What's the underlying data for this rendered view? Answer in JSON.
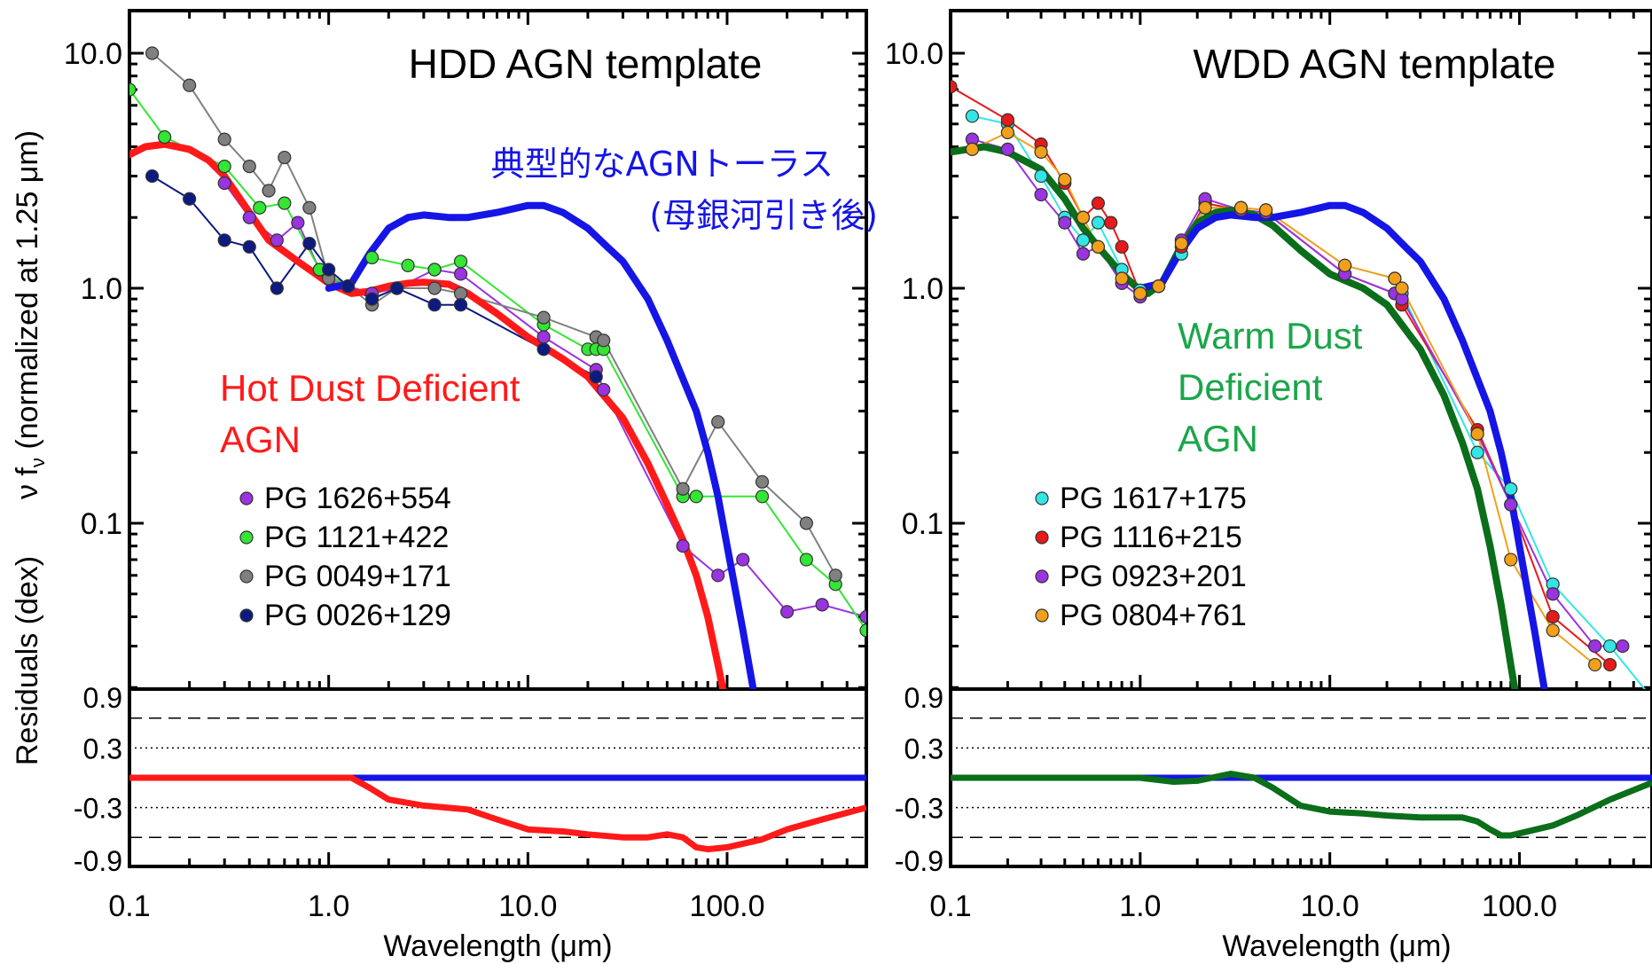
{
  "ylabel_top": "ν f",
  "ylabel_top_sub": "ν",
  "ylabel_top_rest": " (normalized at 1.25 μm)",
  "ylabel_bottom": "Residuals (dex)",
  "xlabel": "Wavelength (μm)",
  "xticks": [
    "0.1",
    "1.0",
    "10.0",
    "100.0"
  ],
  "yticks_top": [
    "10.0",
    "1.0",
    "0.1"
  ],
  "yticks_bottom": [
    "0.9",
    "0.3",
    "-0.3",
    "-0.9"
  ],
  "torus_annotation_line1": "典型的なAGNトーラス",
  "torus_annotation_line2": "(母銀河引き後)",
  "colors": {
    "torus": "#1515e6",
    "hdd": "#ff1a1a",
    "wdd": "#0a6e1a",
    "wdd_text": "#1aa64a",
    "purple": "#9a33e0",
    "green": "#33e633",
    "gray": "#808080",
    "navy": "#0d1a80",
    "cyan": "#33e6e6",
    "red": "#e61a1a",
    "orange": "#f2a01a"
  },
  "chart_data": [
    {
      "type": "line",
      "title": "HDD AGN template",
      "label_lines": [
        "Hot Dust Deficient",
        "AGN"
      ],
      "xlabel": "Wavelength (μm)",
      "ylabel": "ν f_ν (normalized at 1.25 μm)",
      "xscale": "log",
      "yscale": "log",
      "xlim": [
        0.1,
        500
      ],
      "ylim": [
        0.01,
        15
      ],
      "series": [
        {
          "role": "template",
          "color": "#ff1a1a",
          "x": [
            0.1,
            0.12,
            0.15,
            0.2,
            0.25,
            0.3,
            0.4,
            0.5,
            0.7,
            1.0,
            1.3,
            1.6,
            2.0,
            2.5,
            3.0,
            4.0,
            5.0,
            7.0,
            10,
            15,
            20,
            30,
            40,
            50,
            60,
            70,
            80,
            90,
            100
          ],
          "y": [
            3.7,
            4.0,
            4.1,
            3.9,
            3.5,
            3.0,
            2.1,
            1.6,
            1.3,
            1.05,
            0.95,
            0.97,
            1.02,
            1.05,
            1.06,
            1.04,
            0.95,
            0.78,
            0.62,
            0.5,
            0.42,
            0.28,
            0.18,
            0.12,
            0.085,
            0.06,
            0.04,
            0.025,
            0.016
          ]
        },
        {
          "role": "torus",
          "color": "#1515e6",
          "x": [
            1.0,
            1.3,
            1.6,
            2.0,
            2.5,
            3.0,
            4.0,
            5.0,
            7.0,
            10,
            12,
            15,
            20,
            25,
            30,
            40,
            50,
            70,
            80,
            90,
            100,
            120,
            150
          ],
          "y": [
            1.0,
            1.05,
            1.4,
            1.8,
            2.0,
            2.05,
            2.0,
            2.0,
            2.1,
            2.25,
            2.25,
            2.1,
            1.8,
            1.5,
            1.3,
            0.9,
            0.6,
            0.3,
            0.2,
            0.13,
            0.08,
            0.035,
            0.012
          ]
        },
        {
          "name": "PG 1626+554",
          "color": "#9a33e0",
          "x": [
            0.3,
            0.4,
            0.55,
            0.7,
            0.9,
            1.25,
            1.65,
            2.2,
            3.4,
            4.6,
            12,
            22,
            24,
            60,
            90,
            120,
            200,
            300,
            500
          ],
          "y": [
            2.8,
            2.0,
            1.6,
            1.9,
            1.2,
            1.02,
            0.95,
            1.0,
            1.2,
            1.15,
            0.62,
            0.45,
            0.37,
            0.08,
            0.06,
            0.07,
            0.042,
            0.045,
            0.04
          ]
        },
        {
          "name": "PG 1121+422",
          "color": "#33e633",
          "x": [
            0.1,
            0.15,
            0.3,
            0.45,
            0.6,
            0.9,
            1.25,
            1.65,
            2.5,
            3.4,
            4.6,
            12,
            20,
            22,
            24,
            60,
            70,
            150,
            250,
            350,
            500
          ],
          "y": [
            7.0,
            4.4,
            3.3,
            2.2,
            2.3,
            1.2,
            1.02,
            1.35,
            1.25,
            1.2,
            1.3,
            0.7,
            0.55,
            0.55,
            0.55,
            0.13,
            0.13,
            0.13,
            0.07,
            0.055,
            0.035
          ]
        },
        {
          "name": "PG 0049+171",
          "color": "#808080",
          "x": [
            0.13,
            0.2,
            0.3,
            0.4,
            0.5,
            0.6,
            0.8,
            1.0,
            1.25,
            1.65,
            2.2,
            3.4,
            4.6,
            12,
            22,
            24,
            60,
            90,
            150,
            250,
            350
          ],
          "y": [
            10.0,
            7.3,
            4.3,
            3.3,
            2.6,
            3.6,
            2.2,
            1.1,
            1.02,
            0.85,
            1.0,
            1.0,
            0.95,
            0.75,
            0.62,
            0.6,
            0.14,
            0.27,
            0.15,
            0.1,
            0.06
          ]
        },
        {
          "name": "PG 0026+129",
          "color": "#0d1a80",
          "x": [
            0.13,
            0.2,
            0.3,
            0.4,
            0.55,
            0.8,
            1.0,
            1.25,
            1.65,
            2.2,
            3.4,
            4.6,
            12,
            22
          ],
          "y": [
            3.0,
            2.4,
            1.6,
            1.5,
            1.0,
            1.55,
            1.2,
            1.02,
            0.9,
            1.0,
            0.85,
            0.85,
            0.55,
            0.42
          ]
        }
      ],
      "residuals": {
        "ylim": [
          -1.05,
          1.05
        ],
        "yticks": [
          0.9,
          0.3,
          -0.3,
          -0.9
        ],
        "dotted": [
          0.3,
          -0.3
        ],
        "dashed": [
          0.6,
          -0.6
        ],
        "reference_color": "#1515e6",
        "series": {
          "color": "#ff1a1a",
          "x": [
            0.1,
            1.3,
            1.6,
            2.0,
            3.0,
            5.0,
            7.0,
            10,
            15,
            20,
            30,
            40,
            50,
            60,
            70,
            80,
            100,
            150,
            200,
            300,
            500
          ],
          "y": [
            0.0,
            0.0,
            -0.1,
            -0.22,
            -0.28,
            -0.32,
            -0.42,
            -0.52,
            -0.54,
            -0.57,
            -0.6,
            -0.6,
            -0.57,
            -0.6,
            -0.7,
            -0.72,
            -0.7,
            -0.62,
            -0.52,
            -0.42,
            -0.3
          ]
        }
      }
    },
    {
      "type": "line",
      "title": "WDD AGN template",
      "label_lines": [
        "Warm Dust",
        "Deficient",
        "AGN"
      ],
      "xlabel": "Wavelength (μm)",
      "xscale": "log",
      "yscale": "log",
      "xlim": [
        0.1,
        500
      ],
      "ylim": [
        0.01,
        15
      ],
      "series": [
        {
          "role": "template",
          "color": "#0a6e1a",
          "x": [
            0.1,
            0.15,
            0.2,
            0.3,
            0.4,
            0.5,
            0.6,
            0.8,
            1.0,
            1.1,
            1.3,
            1.6,
            2.0,
            2.5,
            3.0,
            4.0,
            5.0,
            7.0,
            10,
            15,
            20,
            30,
            40,
            50,
            60,
            70,
            80,
            90,
            100,
            120
          ],
          "y": [
            3.8,
            4.0,
            3.8,
            3.2,
            2.4,
            1.8,
            1.5,
            1.15,
            0.98,
            0.95,
            1.05,
            1.45,
            1.9,
            2.1,
            2.15,
            2.05,
            1.85,
            1.45,
            1.15,
            1.0,
            0.85,
            0.55,
            0.35,
            0.22,
            0.14,
            0.08,
            0.045,
            0.025,
            0.015,
            0.006
          ]
        },
        {
          "role": "torus",
          "color": "#1515e6",
          "x": [
            1.0,
            1.3,
            1.6,
            2.0,
            2.5,
            3.0,
            4.0,
            5.0,
            7.0,
            10,
            12,
            15,
            20,
            25,
            30,
            40,
            50,
            70,
            80,
            90,
            100,
            120,
            150
          ],
          "y": [
            1.0,
            1.05,
            1.4,
            1.8,
            2.0,
            2.05,
            2.0,
            2.0,
            2.1,
            2.25,
            2.25,
            2.1,
            1.8,
            1.5,
            1.3,
            0.9,
            0.6,
            0.3,
            0.2,
            0.13,
            0.08,
            0.035,
            0.012
          ]
        },
        {
          "name": "PG 1617+175",
          "color": "#33e6e6",
          "x": [
            0.13,
            0.2,
            0.3,
            0.4,
            0.5,
            0.6,
            0.8,
            1.0,
            1.25,
            1.65,
            2.2,
            3.4,
            4.6,
            12,
            22,
            24,
            60,
            90,
            150,
            300,
            500
          ],
          "y": [
            5.4,
            5.0,
            3.0,
            2.0,
            1.6,
            1.9,
            1.2,
            0.98,
            1.02,
            1.4,
            2.2,
            2.2,
            2.15,
            1.25,
            1.1,
            0.95,
            0.2,
            0.14,
            0.055,
            0.03,
            0.018
          ]
        },
        {
          "name": "PG 1116+215",
          "color": "#e61a1a",
          "x": [
            0.1,
            0.2,
            0.3,
            0.4,
            0.5,
            0.6,
            0.7,
            0.8,
            1.0,
            1.25,
            1.65,
            2.2,
            3.4,
            4.6,
            12,
            22,
            24,
            60,
            90,
            150,
            300
          ],
          "y": [
            7.2,
            5.2,
            4.1,
            2.8,
            2.0,
            2.3,
            1.9,
            1.5,
            0.95,
            1.02,
            1.5,
            2.3,
            2.15,
            2.1,
            1.15,
            0.95,
            0.85,
            0.25,
            0.12,
            0.04,
            0.025
          ]
        },
        {
          "name": "PG 0923+201",
          "color": "#9a33e0",
          "x": [
            0.13,
            0.2,
            0.3,
            0.4,
            0.5,
            0.6,
            0.8,
            1.0,
            1.25,
            1.65,
            2.2,
            3.4,
            4.6,
            12,
            22,
            24,
            60,
            90,
            150,
            250,
            350
          ],
          "y": [
            4.3,
            3.9,
            2.5,
            1.9,
            1.4,
            1.5,
            1.05,
            0.92,
            1.02,
            1.6,
            2.4,
            2.15,
            2.1,
            1.15,
            0.95,
            0.9,
            0.24,
            0.12,
            0.05,
            0.03,
            0.03
          ]
        },
        {
          "name": "PG 0804+761",
          "color": "#f2a01a",
          "x": [
            0.13,
            0.2,
            0.3,
            0.4,
            0.5,
            0.6,
            0.8,
            1.0,
            1.25,
            1.65,
            2.2,
            3.4,
            4.6,
            12,
            22,
            24,
            60,
            90,
            150,
            250
          ],
          "y": [
            3.9,
            4.6,
            3.8,
            2.9,
            2.0,
            1.5,
            1.1,
            0.95,
            1.02,
            1.55,
            2.2,
            2.2,
            2.15,
            1.25,
            1.1,
            1.0,
            0.24,
            0.07,
            0.035,
            0.025
          ]
        }
      ],
      "residuals": {
        "ylim": [
          -1.05,
          1.05
        ],
        "yticks": [
          0.9,
          0.3,
          -0.3,
          -0.9
        ],
        "dotted": [
          0.3,
          -0.3
        ],
        "dashed": [
          0.6,
          -0.6
        ],
        "reference_color": "#1515e6",
        "series": {
          "color": "#0a6e1a",
          "x": [
            0.1,
            1.0,
            1.5,
            2.0,
            3.0,
            4.0,
            5.0,
            7.0,
            10,
            15,
            20,
            30,
            40,
            50,
            60,
            70,
            80,
            90,
            100,
            150,
            200,
            300,
            500
          ],
          "y": [
            0.0,
            0.0,
            -0.04,
            -0.03,
            0.04,
            0.0,
            -0.1,
            -0.28,
            -0.34,
            -0.36,
            -0.38,
            -0.4,
            -0.4,
            -0.4,
            -0.44,
            -0.52,
            -0.58,
            -0.58,
            -0.56,
            -0.48,
            -0.38,
            -0.22,
            -0.05
          ]
        }
      }
    }
  ]
}
